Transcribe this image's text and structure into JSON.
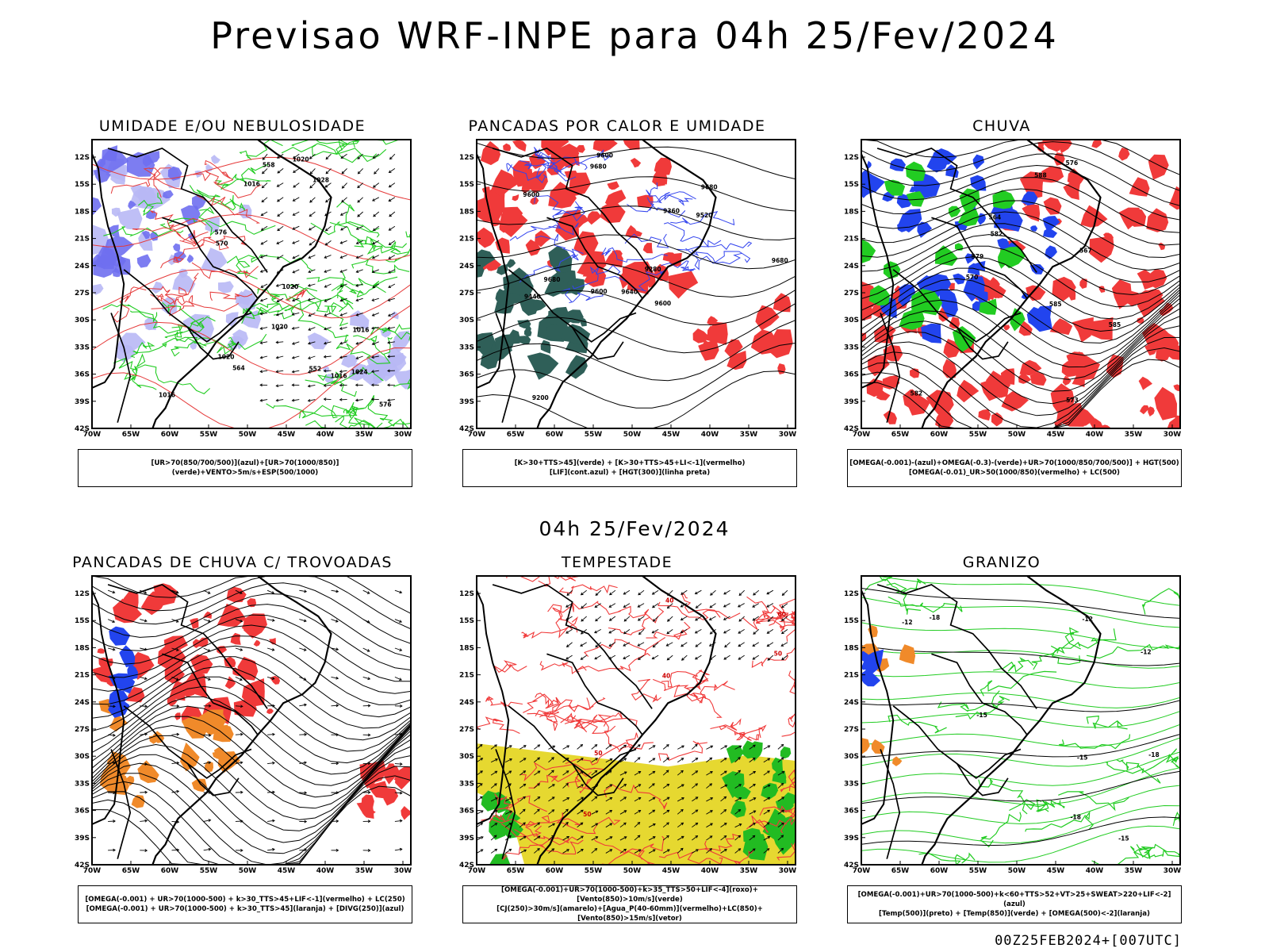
{
  "header": {
    "title": "Previsao WRF-INPE  para 04h 25/Fev/2024"
  },
  "middle": {
    "title": "04h 25/Fev/2024"
  },
  "footer": {
    "text": "00Z25FEB2024+[007UTC]"
  },
  "axes": {
    "lat_labels": [
      "12S",
      "15S",
      "18S",
      "21S",
      "24S",
      "27S",
      "30S",
      "33S",
      "36S",
      "39S",
      "42S"
    ],
    "lon_labels": [
      "70W",
      "65W",
      "60W",
      "55W",
      "50W",
      "45W",
      "40W",
      "35W",
      "30W"
    ]
  },
  "panels": [
    {
      "title": "UMIDADE E/OU NEBULOSIDADE",
      "legend": [
        "[UR>70(850/700/500)](azul)+[UR>70(1000/850)](verde)+VENTO>5m/s+ESP(500/1000)"
      ],
      "contour_labels": [
        "1016",
        "1016",
        "1020",
        "1020",
        "1016",
        "1020",
        "1024",
        "1028",
        "1016",
        "1020",
        "576",
        "570",
        "564",
        "558",
        "552",
        "576"
      ],
      "colors": {
        "fill_primary": "#6f6ff0",
        "fill_secondary": "#b8b8f5",
        "contour_a": "#22cc22",
        "contour_b": "#e53a3a",
        "contour_c": "#000000"
      }
    },
    {
      "title": "PANCADAS POR CALOR E UMIDADE",
      "legend": [
        "[K>30+TTS>45](verde) + [K>30+TTS>45+LI<-1](vermelho)",
        "[LIF](cont.azul) + [HGT(300)](linha preta)"
      ],
      "contour_labels": [
        "9600",
        "9680",
        "9680",
        "9640",
        "9600",
        "9680",
        "9600",
        "9520",
        "9440",
        "9360",
        "9280",
        "9200",
        "9680",
        "9600"
      ],
      "colors": {
        "fill_primary": "#f03a3a",
        "fill_secondary": "#2f5f58",
        "contour_a": "#3344ee",
        "contour_b": "#000000"
      }
    },
    {
      "title": "CHUVA",
      "legend": [
        "[OMEGA(-0.001)-(azul)+OMEGA(-0.3)-(verde)+UR>70(1000/850/700/500)] + HGT(500)",
        "[OMEGA(-0.01)_UR>50(1000/850)(vermelho) + LC(500)"
      ],
      "contour_labels": [
        "588",
        "585",
        "582",
        "579",
        "576",
        "573",
        "570",
        "567",
        "564",
        "585",
        "582"
      ],
      "colors": {
        "fill_primary": "#f03a3a",
        "fill_secondary": "#2244ee",
        "fill_tertiary": "#22cc22",
        "contour_a": "#000000"
      }
    },
    {
      "title": "PANCADAS DE CHUVA C/ TROVOADAS",
      "legend": [
        "[OMEGA(-0.001) + UR>70(1000-500) + k>30_TTS>45+LIF<-1](vermelho) + LC(250)",
        "[OMEGA(-0.001) + UR>70(1000-500) + k>30_TTS>45](laranja) + [DIVG(250)](azul)"
      ],
      "contour_labels": [],
      "colors": {
        "fill_primary": "#f03a3a",
        "fill_secondary": "#f08a2a",
        "fill_tertiary": "#2244ee",
        "contour_a": "#000000"
      }
    },
    {
      "title": "TEMPESTADE",
      "legend": [
        "[OMEGA(-0.001)+UR>70(1000-500)+k>35_TTS>50+LIF<-4](roxo)+[Vento(850)>10m/s](verde)",
        "[CJ(250)>30m/s](amarelo)+[Agua_P(40-60mm)](vermelho)+LC(850)+[Vento(850)>15m/s](vetor)"
      ],
      "contour_labels": [
        "50",
        "40",
        "60",
        "40",
        "50",
        "50"
      ],
      "colors": {
        "fill_primary": "#e6d830",
        "fill_secondary": "#22bb22",
        "contour_a": "#f03a3a",
        "contour_b": "#000000"
      }
    },
    {
      "title": "GRANIZO",
      "legend": [
        "[OMEGA(-0.001)+UR>70(1000-500)+k<60+TTS>52+VT>25+SWEAT>220+LIF<-2](azul)",
        "[Temp(500)](preto) + [Temp(850)](verde) + [OMEGA(500)<-2](laranja)"
      ],
      "contour_labels": [
        "-12",
        "-15",
        "-18",
        "-12",
        "-15",
        "-18",
        "-12",
        "-15",
        "-18"
      ],
      "colors": {
        "contour_a": "#22cc22",
        "contour_b": "#000000",
        "fill_secondary": "#f08a2a",
        "fill_tertiary": "#2244ee"
      }
    }
  ]
}
